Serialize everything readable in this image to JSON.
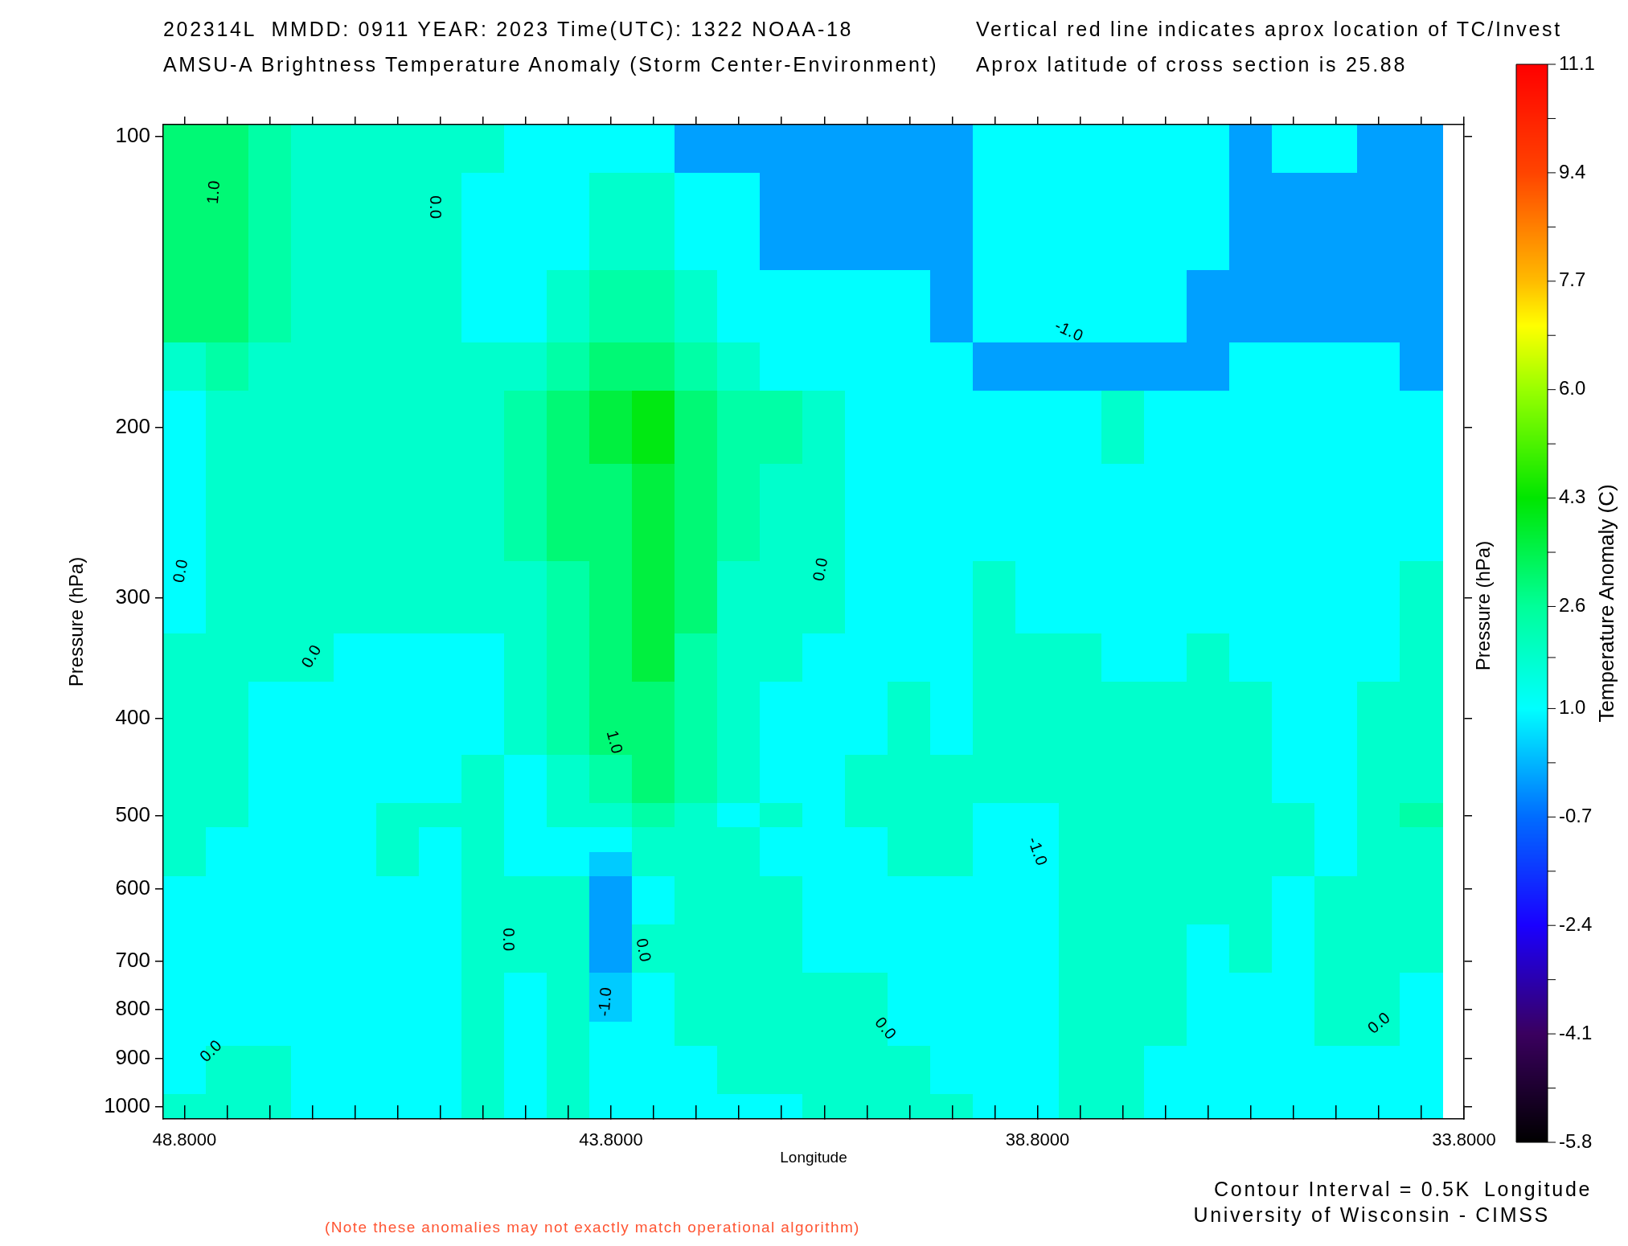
{
  "chart_data": {
    "type": "heatmap",
    "title": "202314L  MMDD: 0911 YEAR: 2023 Time(UTC): 1322 NOAA-18",
    "subtitle": "AMSU-A Brightness Temperature Anomaly (Storm Center-Environment)",
    "xlabel": "Longitude",
    "ylabel": "Pressure (hPa)",
    "y2label": "Pressure (hPa)",
    "clabel": "Temperature Anomaly (C)",
    "annotations": [
      "Vertical red line indicates aprox location of TC/Invest",
      "Aprox latitude of cross section is 25.88",
      "Contour Interval = 0.5K",
      "University of Wisconsin - CIMSS",
      "(Note these anomalies may not exactly match operational algorithm)",
      "Longitude",
      "1.0",
      "0.0",
      "0.0",
      "0.0",
      "0.0",
      "1.0",
      "-1.0",
      "-1.0",
      "0.0",
      "0.0",
      "-1.0",
      "0.0",
      "0.0",
      "0.0"
    ],
    "x": [
      48.8,
      48.3,
      47.8,
      47.3,
      46.8,
      46.3,
      45.8,
      45.3,
      44.8,
      44.3,
      43.8,
      43.3,
      42.8,
      42.3,
      41.8,
      41.3,
      40.8,
      40.3,
      39.8,
      39.3,
      38.8,
      38.3,
      37.8,
      37.3,
      36.8,
      36.3,
      35.8,
      35.3,
      34.8,
      34.3
    ],
    "y_categories": [
      "100",
      null,
      null,
      null,
      null,
      null,
      null,
      null,
      null,
      null,
      null,
      null,
      "200",
      null,
      null,
      null,
      null,
      null,
      null,
      "300",
      null,
      null,
      null,
      null,
      "400",
      null,
      null,
      null,
      "500",
      null,
      null,
      "600",
      null,
      null,
      "700",
      null,
      "800",
      null,
      "900",
      null,
      "1000"
    ],
    "cells": [
      [
        3,
        3,
        2.4,
        1.8,
        1.8,
        1.8,
        1.8,
        1.8,
        1,
        1,
        1,
        1,
        -0.1,
        -0.1,
        -0.1,
        -0.1,
        -0.1,
        -0.1,
        -0.1,
        1,
        1,
        1,
        1,
        1,
        1,
        -0.1,
        1,
        1,
        -0.1,
        -0.1
      ],
      [
        3,
        3,
        2.4,
        1.8,
        1.8,
        1.8,
        1.8,
        1.8,
        1,
        1,
        1,
        1,
        -0.1,
        -0.1,
        -0.1,
        -0.1,
        -0.1,
        -0.1,
        -0.1,
        1,
        1,
        1,
        1,
        1,
        1,
        -0.1,
        1,
        1,
        -0.1,
        -0.1
      ],
      [
        3,
        3,
        2.4,
        1.8,
        1.8,
        1.8,
        1.8,
        1,
        1,
        1,
        1.8,
        1.8,
        1,
        1,
        -0.1,
        -0.1,
        -0.1,
        -0.1,
        -0.1,
        1,
        1,
        1,
        1,
        1,
        1,
        -0.1,
        -0.1,
        -0.1,
        -0.1,
        -0.1
      ],
      [
        3,
        3,
        2.4,
        1.8,
        1.8,
        1.8,
        1.8,
        1,
        1,
        1,
        1.8,
        1.8,
        1,
        1,
        -0.1,
        -0.1,
        -0.1,
        -0.1,
        -0.1,
        1,
        1,
        1,
        1,
        1,
        1,
        -0.1,
        -0.1,
        -0.1,
        -0.1,
        -0.1
      ],
      [
        3,
        3,
        2.4,
        1.8,
        1.8,
        1.8,
        1.8,
        1,
        1,
        1,
        1.8,
        1.8,
        1,
        1,
        -0.1,
        -0.1,
        -0.1,
        -0.1,
        -0.1,
        1,
        1,
        1,
        1,
        1,
        1,
        -0.1,
        -0.1,
        -0.1,
        -0.1,
        -0.1
      ],
      [
        3,
        3,
        2.4,
        1.8,
        1.8,
        1.8,
        1.8,
        1,
        1,
        1,
        1.8,
        1.8,
        1,
        1,
        -0.1,
        -0.1,
        -0.1,
        -0.1,
        -0.1,
        1,
        1,
        1,
        1,
        1,
        1,
        -0.1,
        -0.1,
        -0.1,
        -0.1,
        -0.1
      ],
      [
        3,
        3,
        2.4,
        1.8,
        1.8,
        1.8,
        1.8,
        1,
        1,
        1.8,
        2.4,
        2.4,
        1.8,
        1,
        1,
        1,
        1,
        1,
        -0.1,
        1,
        1,
        1,
        1,
        1,
        -0.1,
        -0.1,
        -0.1,
        -0.1,
        -0.1,
        -0.1
      ],
      [
        3,
        3,
        2.4,
        1.8,
        1.8,
        1.8,
        1.8,
        1,
        1,
        1.8,
        2.4,
        2.4,
        1.8,
        1,
        1,
        1,
        1,
        1,
        -0.1,
        1,
        1,
        1,
        1,
        1,
        -0.1,
        -0.1,
        -0.1,
        -0.1,
        -0.1,
        -0.1
      ],
      [
        3,
        3,
        2.4,
        1.8,
        1.8,
        1.8,
        1.8,
        1,
        1,
        1.8,
        2.4,
        2.4,
        1.8,
        1,
        1,
        1,
        1,
        1,
        -0.1,
        1,
        1,
        1,
        1,
        1,
        -0.1,
        -0.1,
        -0.1,
        -0.1,
        -0.1,
        -0.1
      ],
      [
        1.8,
        2.4,
        1.8,
        1.8,
        1.8,
        1.8,
        1.8,
        1.8,
        1.8,
        2.4,
        3,
        3,
        2.4,
        1.8,
        1,
        1,
        1,
        1,
        1,
        -0.1,
        -0.1,
        -0.1,
        -0.1,
        -0.1,
        -0.1,
        1,
        1,
        1,
        1,
        -0.1
      ],
      [
        1.8,
        2.4,
        1.8,
        1.8,
        1.8,
        1.8,
        1.8,
        1.8,
        1.8,
        2.4,
        3,
        3,
        2.4,
        1.8,
        1,
        1,
        1,
        1,
        1,
        -0.1,
        -0.1,
        -0.1,
        -0.1,
        -0.1,
        -0.1,
        1,
        1,
        1,
        1,
        -0.1
      ],
      [
        1,
        1.8,
        1.8,
        1.8,
        1.8,
        1.8,
        1.8,
        1.8,
        2.4,
        3,
        3.6,
        4.1,
        3,
        2.4,
        2.4,
        1.8,
        1,
        1,
        1,
        1,
        1,
        1,
        1.8,
        1,
        1,
        1,
        1,
        1,
        1,
        1
      ],
      [
        1,
        1.8,
        1.8,
        1.8,
        1.8,
        1.8,
        1.8,
        1.8,
        2.4,
        3,
        3.6,
        4.1,
        3,
        2.4,
        2.4,
        1.8,
        1,
        1,
        1,
        1,
        1,
        1,
        1.8,
        1,
        1,
        1,
        1,
        1,
        1,
        1
      ],
      [
        1,
        1.8,
        1.8,
        1.8,
        1.8,
        1.8,
        1.8,
        1.8,
        2.4,
        3,
        3.6,
        4.1,
        3,
        2.4,
        2.4,
        1.8,
        1,
        1,
        1,
        1,
        1,
        1,
        1.8,
        1,
        1,
        1,
        1,
        1,
        1,
        1
      ],
      [
        1,
        1.8,
        1.8,
        1.8,
        1.8,
        1.8,
        1.8,
        1.8,
        2.4,
        3,
        3,
        3.6,
        3,
        2.4,
        1.8,
        1.8,
        1,
        1,
        1,
        1,
        1,
        1,
        1,
        1,
        1,
        1,
        1,
        1,
        1,
        1
      ],
      [
        1,
        1.8,
        1.8,
        1.8,
        1.8,
        1.8,
        1.8,
        1.8,
        2.4,
        3,
        3,
        3.6,
        3,
        2.4,
        1.8,
        1.8,
        1,
        1,
        1,
        1,
        1,
        1,
        1,
        1,
        1,
        1,
        1,
        1,
        1,
        1
      ],
      [
        1,
        1.8,
        1.8,
        1.8,
        1.8,
        1.8,
        1.8,
        1.8,
        2.4,
        3,
        3,
        3.6,
        3,
        2.4,
        1.8,
        1.8,
        1,
        1,
        1,
        1,
        1,
        1,
        1,
        1,
        1,
        1,
        1,
        1,
        1,
        1
      ],
      [
        1,
        1.8,
        1.8,
        1.8,
        1.8,
        1.8,
        1.8,
        1.8,
        2.4,
        3,
        3,
        3.6,
        3,
        2.4,
        1.8,
        1.8,
        1,
        1,
        1,
        1,
        1,
        1,
        1,
        1,
        1,
        1,
        1,
        1,
        1,
        1
      ],
      [
        1,
        1.8,
        1.8,
        1.8,
        1.8,
        1.8,
        1.8,
        1.8,
        1.8,
        2.4,
        3,
        3.6,
        3,
        1.8,
        1.8,
        1.8,
        1,
        1,
        1,
        1.8,
        1,
        1,
        1,
        1,
        1,
        1,
        1,
        1,
        1,
        1.8
      ],
      [
        1,
        1.8,
        1.8,
        1.8,
        1.8,
        1.8,
        1.8,
        1.8,
        1.8,
        2.4,
        3,
        3.6,
        3,
        1.8,
        1.8,
        1.8,
        1,
        1,
        1,
        1.8,
        1,
        1,
        1,
        1,
        1,
        1,
        1,
        1,
        1,
        1.8
      ],
      [
        1,
        1.8,
        1.8,
        1.8,
        1.8,
        1.8,
        1.8,
        1.8,
        1.8,
        2.4,
        3,
        3.6,
        3,
        1.8,
        1.8,
        1.8,
        1,
        1,
        1,
        1.8,
        1,
        1,
        1,
        1,
        1,
        1,
        1,
        1,
        1,
        1.8
      ],
      [
        1.8,
        1.8,
        1.8,
        1.8,
        1,
        1,
        1,
        1,
        1.8,
        2.4,
        3,
        3.6,
        2.4,
        1.8,
        1.8,
        1,
        1,
        1,
        1,
        1.8,
        1.8,
        1.8,
        1,
        1,
        1.8,
        1,
        1,
        1,
        1,
        1.8
      ],
      [
        1.8,
        1.8,
        1.8,
        1.8,
        1,
        1,
        1,
        1,
        1.8,
        2.4,
        3,
        3.6,
        2.4,
        1.8,
        1.8,
        1,
        1,
        1,
        1,
        1.8,
        1.8,
        1.8,
        1,
        1,
        1.8,
        1,
        1,
        1,
        1,
        1.8
      ],
      [
        1.8,
        1.8,
        1,
        1,
        1,
        1,
        1,
        1,
        1.8,
        2.4,
        3,
        3,
        2.4,
        1.8,
        1,
        1,
        1,
        1.8,
        1,
        1.8,
        1.8,
        1.8,
        1.8,
        1.8,
        1.8,
        1.8,
        1,
        1,
        1.8,
        1.8
      ],
      [
        1.8,
        1.8,
        1,
        1,
        1,
        1,
        1,
        1,
        1.8,
        2.4,
        3,
        3,
        2.4,
        1.8,
        1,
        1,
        1,
        1.8,
        1,
        1.8,
        1.8,
        1.8,
        1.8,
        1.8,
        1.8,
        1.8,
        1,
        1,
        1.8,
        1.8
      ],
      [
        1.8,
        1.8,
        1,
        1,
        1,
        1,
        1,
        1,
        1.8,
        2.4,
        3,
        3,
        2.4,
        1.8,
        1,
        1,
        1,
        1.8,
        1,
        1.8,
        1.8,
        1.8,
        1.8,
        1.8,
        1.8,
        1.8,
        1,
        1,
        1.8,
        1.8
      ],
      [
        1.8,
        1.8,
        1,
        1,
        1,
        1,
        1,
        1.8,
        1,
        1.8,
        2.4,
        3,
        2.4,
        1.8,
        1,
        1,
        1.8,
        1.8,
        1.8,
        1.8,
        1.8,
        1.8,
        1.8,
        1.8,
        1.8,
        1.8,
        1,
        1,
        1.8,
        1.8
      ],
      [
        1.8,
        1.8,
        1,
        1,
        1,
        1,
        1,
        1.8,
        1,
        1.8,
        2.4,
        3,
        2.4,
        1.8,
        1,
        1,
        1.8,
        1.8,
        1.8,
        1.8,
        1.8,
        1.8,
        1.8,
        1.8,
        1.8,
        1.8,
        1,
        1,
        1.8,
        1.8
      ],
      [
        1.8,
        1.8,
        1,
        1,
        1,
        1.8,
        1.8,
        1.8,
        1,
        1.8,
        1.8,
        2.4,
        1.8,
        1,
        1.8,
        1,
        1.8,
        1.8,
        1.8,
        1,
        1,
        1.8,
        1.8,
        1.8,
        1.8,
        1.8,
        1.8,
        1,
        1.8,
        2.4
      ],
      [
        1.8,
        1,
        1,
        1,
        1,
        1.8,
        1,
        1.8,
        1,
        1,
        1,
        1.8,
        1.8,
        1.8,
        1,
        1,
        1,
        1.8,
        1.8,
        1,
        1,
        1.8,
        1.8,
        1.8,
        1.8,
        1.8,
        1.8,
        1,
        1.8,
        1.8
      ],
      [
        1.8,
        1,
        1,
        1,
        1,
        1.8,
        1,
        1.8,
        1,
        1,
        0.4,
        1.8,
        1.8,
        1.8,
        1,
        1,
        1,
        1.8,
        1.8,
        1,
        1,
        1.8,
        1.8,
        1.8,
        1.8,
        1.8,
        1.8,
        1,
        1.8,
        1.8
      ],
      [
        1,
        1,
        1,
        1,
        1,
        1,
        1,
        1.8,
        1.8,
        1.8,
        -0.1,
        1,
        1.8,
        1.8,
        1.8,
        1,
        1,
        1,
        1,
        1,
        1,
        1.8,
        1.8,
        1.8,
        1.8,
        1.8,
        1,
        1.8,
        1.8,
        1.8
      ],
      [
        1,
        1,
        1,
        1,
        1,
        1,
        1,
        1.8,
        1.8,
        1.8,
        -0.1,
        1,
        1.8,
        1.8,
        1.8,
        1,
        1,
        1,
        1,
        1,
        1,
        1.8,
        1.8,
        1.8,
        1.8,
        1.8,
        1,
        1.8,
        1.8,
        1.8
      ],
      [
        1,
        1,
        1,
        1,
        1,
        1,
        1,
        1.8,
        1.8,
        1.8,
        -0.1,
        1.8,
        1.8,
        1.8,
        1.8,
        1,
        1,
        1,
        1,
        1,
        1,
        1.8,
        1.8,
        1.8,
        1,
        1.8,
        1,
        1.8,
        1.8,
        1.8
      ],
      [
        1,
        1,
        1,
        1,
        1,
        1,
        1,
        1.8,
        1.8,
        1.8,
        -0.1,
        1.8,
        1.8,
        1.8,
        1.8,
        1,
        1,
        1,
        1,
        1,
        1,
        1.8,
        1.8,
        1.8,
        1,
        1.8,
        1,
        1.8,
        1.8,
        1.8
      ],
      [
        1,
        1,
        1,
        1,
        1,
        1,
        1,
        1.8,
        1,
        1.8,
        0.4,
        1,
        1.8,
        1.8,
        1.8,
        1.8,
        1.8,
        1,
        1,
        1,
        1,
        1.8,
        1.8,
        1.8,
        1,
        1,
        1,
        1.8,
        1.8,
        1
      ],
      [
        1,
        1,
        1,
        1,
        1,
        1,
        1,
        1.8,
        1,
        1.8,
        0.4,
        1,
        1.8,
        1.8,
        1.8,
        1.8,
        1.8,
        1,
        1,
        1,
        1,
        1.8,
        1.8,
        1.8,
        1,
        1,
        1,
        1.8,
        1.8,
        1
      ],
      [
        1,
        1,
        1,
        1,
        1,
        1,
        1,
        1.8,
        1,
        1.8,
        1,
        1,
        1.8,
        1.8,
        1.8,
        1.8,
        1.8,
        1,
        1,
        1,
        1,
        1.8,
        1.8,
        1.8,
        1,
        1,
        1,
        1.8,
        1.8,
        1
      ],
      [
        1,
        1.8,
        1.8,
        1,
        1,
        1,
        1,
        1.8,
        1,
        1.8,
        1,
        1,
        1,
        1.8,
        1.8,
        1.8,
        1.8,
        1.8,
        1,
        1,
        1,
        1.8,
        1.8,
        1,
        1,
        1,
        1,
        1,
        1,
        1
      ],
      [
        1,
        1.8,
        1.8,
        1,
        1,
        1,
        1,
        1.8,
        1,
        1.8,
        1,
        1,
        1,
        1.8,
        1.8,
        1.8,
        1.8,
        1.8,
        1,
        1,
        1,
        1.8,
        1.8,
        1,
        1,
        1,
        1,
        1,
        1,
        1
      ],
      [
        1.8,
        1.8,
        1.8,
        1,
        1,
        1,
        1,
        1.8,
        1,
        1.8,
        1,
        1,
        1,
        1,
        1,
        1.8,
        1.8,
        1.8,
        1.8,
        1,
        1,
        1.8,
        1.8,
        1,
        1,
        1,
        1,
        1,
        1,
        1
      ]
    ],
    "clim": [
      -5.8,
      11.1
    ],
    "cticks": [
      -5.8,
      {
        "value": -4.95,
        "label": null
      },
      -4.1,
      {
        "value": -3.25,
        "label": null
      },
      -2.4,
      {
        "value": -1.55,
        "label": null
      },
      -0.7,
      {
        "value": 0.15,
        "label": null
      },
      {
        "value": 1,
        "label": "1.0"
      },
      {
        "value": 1.8,
        "label": null
      },
      2.6,
      {
        "value": 3.45,
        "label": null
      },
      4.3,
      {
        "value": 5.15,
        "label": null
      },
      {
        "value": 6,
        "label": "6.0"
      },
      {
        "value": 6.85,
        "label": null
      },
      7.7,
      {
        "value": 8.55,
        "label": null
      },
      9.4,
      {
        "value": 10.25,
        "label": null
      },
      11.1
    ],
    "xlim": [
      49.05,
      33.8
    ],
    "xticks": [
      {
        "value": 48.8,
        "label": "48.8000"
      },
      {
        "value": 48.3,
        "label": null
      },
      {
        "value": 47.8,
        "label": null
      },
      {
        "value": 47.3,
        "label": null
      },
      {
        "value": 46.8,
        "label": null
      },
      {
        "value": 46.3,
        "label": null
      },
      {
        "value": 45.8,
        "label": null
      },
      {
        "value": 45.3,
        "label": null
      },
      {
        "value": 44.8,
        "label": null
      },
      {
        "value": 44.3,
        "label": null
      },
      {
        "value": 43.8,
        "label": "43.8000"
      },
      {
        "value": 43.3,
        "label": null
      },
      {
        "value": 42.8,
        "label": null
      },
      {
        "value": 42.3,
        "label": null
      },
      {
        "value": 41.8,
        "label": null
      },
      {
        "value": 41.3,
        "label": null
      },
      {
        "value": 40.8,
        "label": null
      },
      {
        "value": 40.3,
        "label": null
      },
      {
        "value": 39.8,
        "label": null
      },
      {
        "value": 39.3,
        "label": null
      },
      {
        "value": 38.8,
        "label": "38.8000"
      },
      {
        "value": 38.3,
        "label": null
      },
      {
        "value": 37.8,
        "label": null
      },
      {
        "value": 37.3,
        "label": null
      },
      {
        "value": 36.8,
        "label": null
      },
      {
        "value": 36.3,
        "label": null
      },
      {
        "value": 35.8,
        "label": null
      },
      {
        "value": 35.3,
        "label": null
      },
      {
        "value": 34.8,
        "label": null
      },
      {
        "value": 34.3,
        "label": null
      },
      {
        "value": 33.8,
        "label": "33.8000"
      }
    ]
  }
}
